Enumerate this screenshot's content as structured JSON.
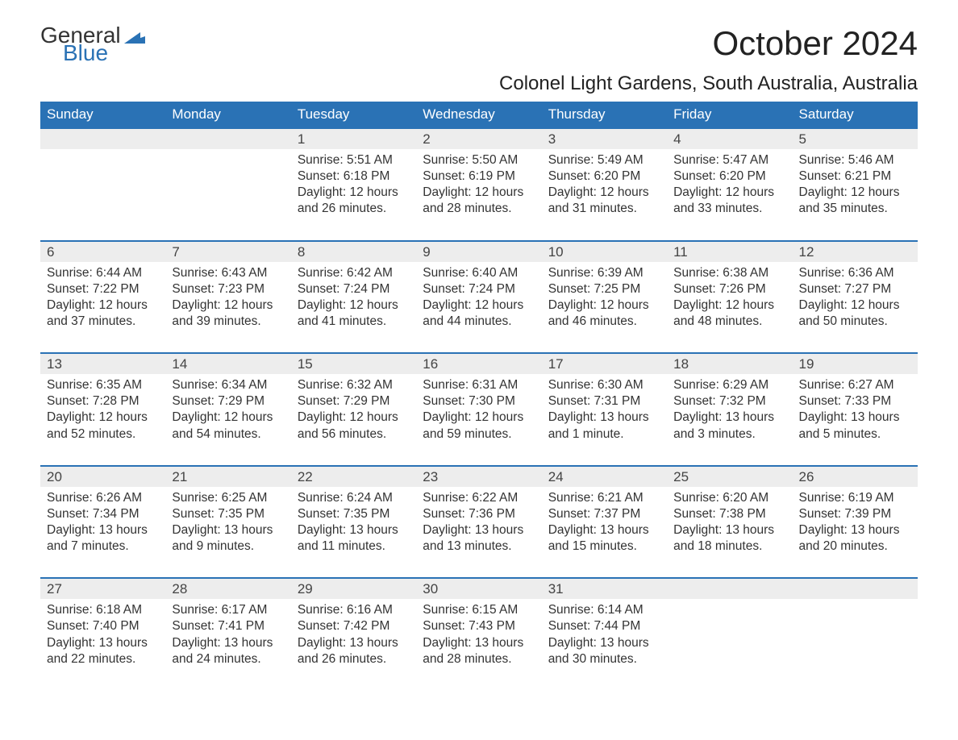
{
  "logo": {
    "text1": "General",
    "text2": "Blue",
    "flag_color": "#2a72b5"
  },
  "title": "October 2024",
  "subtitle": "Colonel Light Gardens, South Australia, Australia",
  "header_bg": "#2a72b5",
  "header_fg": "#ffffff",
  "daynum_bg": "#ededed",
  "border_color": "#2a72b5",
  "text_color": "#333333",
  "daynames": [
    "Sunday",
    "Monday",
    "Tuesday",
    "Wednesday",
    "Thursday",
    "Friday",
    "Saturday"
  ],
  "weeks": [
    {
      "nums": [
        "",
        "",
        "1",
        "2",
        "3",
        "4",
        "5"
      ],
      "cells": [
        "",
        "",
        "Sunrise: 5:51 AM\nSunset: 6:18 PM\nDaylight: 12 hours and 26 minutes.",
        "Sunrise: 5:50 AM\nSunset: 6:19 PM\nDaylight: 12 hours and 28 minutes.",
        "Sunrise: 5:49 AM\nSunset: 6:20 PM\nDaylight: 12 hours and 31 minutes.",
        "Sunrise: 5:47 AM\nSunset: 6:20 PM\nDaylight: 12 hours and 33 minutes.",
        "Sunrise: 5:46 AM\nSunset: 6:21 PM\nDaylight: 12 hours and 35 minutes."
      ]
    },
    {
      "nums": [
        "6",
        "7",
        "8",
        "9",
        "10",
        "11",
        "12"
      ],
      "cells": [
        "Sunrise: 6:44 AM\nSunset: 7:22 PM\nDaylight: 12 hours and 37 minutes.",
        "Sunrise: 6:43 AM\nSunset: 7:23 PM\nDaylight: 12 hours and 39 minutes.",
        "Sunrise: 6:42 AM\nSunset: 7:24 PM\nDaylight: 12 hours and 41 minutes.",
        "Sunrise: 6:40 AM\nSunset: 7:24 PM\nDaylight: 12 hours and 44 minutes.",
        "Sunrise: 6:39 AM\nSunset: 7:25 PM\nDaylight: 12 hours and 46 minutes.",
        "Sunrise: 6:38 AM\nSunset: 7:26 PM\nDaylight: 12 hours and 48 minutes.",
        "Sunrise: 6:36 AM\nSunset: 7:27 PM\nDaylight: 12 hours and 50 minutes."
      ]
    },
    {
      "nums": [
        "13",
        "14",
        "15",
        "16",
        "17",
        "18",
        "19"
      ],
      "cells": [
        "Sunrise: 6:35 AM\nSunset: 7:28 PM\nDaylight: 12 hours and 52 minutes.",
        "Sunrise: 6:34 AM\nSunset: 7:29 PM\nDaylight: 12 hours and 54 minutes.",
        "Sunrise: 6:32 AM\nSunset: 7:29 PM\nDaylight: 12 hours and 56 minutes.",
        "Sunrise: 6:31 AM\nSunset: 7:30 PM\nDaylight: 12 hours and 59 minutes.",
        "Sunrise: 6:30 AM\nSunset: 7:31 PM\nDaylight: 13 hours and 1 minute.",
        "Sunrise: 6:29 AM\nSunset: 7:32 PM\nDaylight: 13 hours and 3 minutes.",
        "Sunrise: 6:27 AM\nSunset: 7:33 PM\nDaylight: 13 hours and 5 minutes."
      ]
    },
    {
      "nums": [
        "20",
        "21",
        "22",
        "23",
        "24",
        "25",
        "26"
      ],
      "cells": [
        "Sunrise: 6:26 AM\nSunset: 7:34 PM\nDaylight: 13 hours and 7 minutes.",
        "Sunrise: 6:25 AM\nSunset: 7:35 PM\nDaylight: 13 hours and 9 minutes.",
        "Sunrise: 6:24 AM\nSunset: 7:35 PM\nDaylight: 13 hours and 11 minutes.",
        "Sunrise: 6:22 AM\nSunset: 7:36 PM\nDaylight: 13 hours and 13 minutes.",
        "Sunrise: 6:21 AM\nSunset: 7:37 PM\nDaylight: 13 hours and 15 minutes.",
        "Sunrise: 6:20 AM\nSunset: 7:38 PM\nDaylight: 13 hours and 18 minutes.",
        "Sunrise: 6:19 AM\nSunset: 7:39 PM\nDaylight: 13 hours and 20 minutes."
      ]
    },
    {
      "nums": [
        "27",
        "28",
        "29",
        "30",
        "31",
        "",
        ""
      ],
      "cells": [
        "Sunrise: 6:18 AM\nSunset: 7:40 PM\nDaylight: 13 hours and 22 minutes.",
        "Sunrise: 6:17 AM\nSunset: 7:41 PM\nDaylight: 13 hours and 24 minutes.",
        "Sunrise: 6:16 AM\nSunset: 7:42 PM\nDaylight: 13 hours and 26 minutes.",
        "Sunrise: 6:15 AM\nSunset: 7:43 PM\nDaylight: 13 hours and 28 minutes.",
        "Sunrise: 6:14 AM\nSunset: 7:44 PM\nDaylight: 13 hours and 30 minutes.",
        "",
        ""
      ]
    }
  ]
}
